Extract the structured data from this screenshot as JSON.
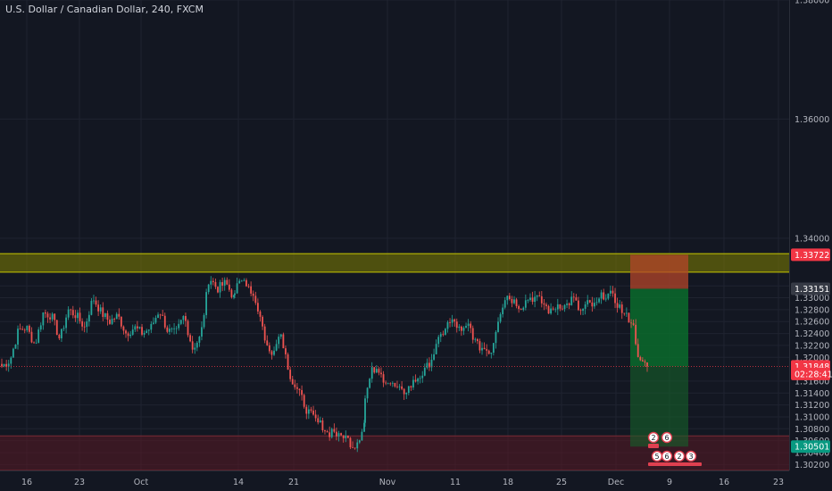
{
  "header": {
    "title": "U.S. Dollar / Canadian Dollar, 240, FXCM"
  },
  "chart_data": {
    "type": "candlestick",
    "symbol": "USDCAD",
    "interval": "240",
    "source": "FXCM",
    "ylim": [
      1.301,
      1.38
    ],
    "y_ticks": [
      "1.38000",
      "1.36000",
      "1.34000",
      "1.33200",
      "1.33000",
      "1.32800",
      "1.32600",
      "1.32400",
      "1.32200",
      "1.32000",
      "1.31600",
      "1.31400",
      "1.31200",
      "1.31000",
      "1.30800",
      "1.30600",
      "1.30400",
      "1.30200"
    ],
    "x_ticks": [
      "16",
      "23",
      "Oct",
      "14",
      "21",
      "Nov",
      "11",
      "18",
      "25",
      "Dec",
      "9",
      "16",
      "23"
    ],
    "price_labels": [
      {
        "text": "1.33722",
        "value": 1.33722,
        "color": "#f23645"
      },
      {
        "text": "1.33151",
        "value": 1.33151,
        "color": "#363a45"
      },
      {
        "text": "1.31848",
        "value": 1.31848,
        "color": "#f23645"
      },
      {
        "text": "02:28:41",
        "value": 1.3172,
        "color": "#f23645"
      },
      {
        "text": "1.30501",
        "value": 1.30501,
        "color": "#089981"
      }
    ],
    "last_price": 1.31848,
    "zones": [
      {
        "name": "resistance-zone",
        "from": 1.3343,
        "to": 1.3374,
        "color": "#808000"
      },
      {
        "name": "support-zone",
        "from": 1.301,
        "to": 1.3068,
        "color": "#5a1a25"
      }
    ],
    "position": {
      "side": "short",
      "entry": 1.33151,
      "stop": 1.33722,
      "target": 1.30501
    },
    "candle_colors": {
      "up": "#26a69a",
      "down": "#ef5350"
    },
    "waypoints": [
      [
        1.3185,
        1.3195,
        1.3245,
        1.325,
        1.322,
        1.3275,
        1.327,
        1.323,
        1.328,
        1.327,
        1.325,
        1.33,
        1.3275,
        1.326,
        1.327,
        1.324,
        1.325,
        1.324,
        1.325,
        1.328,
        1.3245,
        1.324,
        1.327,
        1.3215,
        1.3235,
        1.3335,
        1.3315,
        1.3325,
        1.33
      ],
      [
        1.331,
        1.3325,
        1.333,
        1.3315,
        1.3295,
        1.3265,
        1.3225,
        1.32,
        1.323,
        1.324,
        1.3195,
        1.316,
        1.3145,
        1.313,
        1.311,
        1.31,
        1.309,
        1.3085,
        1.307,
        1.308,
        1.3065,
        1.307,
        1.306,
        1.305,
        1.3065,
        1.309
      ],
      [
        1.313,
        1.318,
        1.317,
        1.316,
        1.315,
        1.314,
        1.315,
        1.3165,
        1.3175,
        1.32,
        1.323,
        1.3255,
        1.326,
        1.324,
        1.3255,
        1.322,
        1.3215,
        1.321,
        1.327,
        1.3305,
        1.3295,
        1.3285,
        1.33,
        1.33,
        1.329,
        1.3275,
        1.329,
        1.3285,
        1.33,
        1.3275,
        1.329,
        1.3285,
        1.3305,
        1.3305,
        1.329,
        1.327,
        1.326,
        1.319,
        1.3185
      ]
    ],
    "events": [
      "2",
      "6",
      "5",
      "6",
      "2",
      "3"
    ]
  }
}
